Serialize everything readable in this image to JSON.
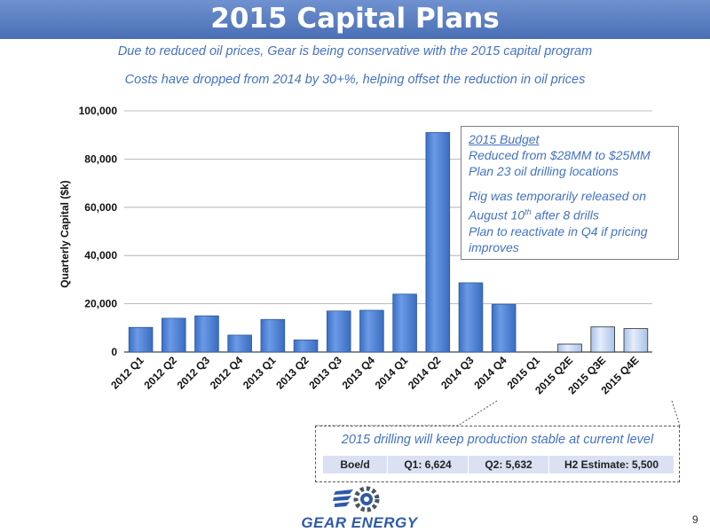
{
  "header": {
    "title": "2015 Capital Plans",
    "subtitle1": "Due to reduced oil prices, Gear is being conservative with the 2015 capital program",
    "subtitle2": "Costs have dropped from 2014 by 30+%, helping offset the reduction in oil prices"
  },
  "chart_data": {
    "type": "bar",
    "title": "",
    "ylabel": "Quarterly Capital ($k)",
    "xlabel": "",
    "ylim": [
      0,
      100000
    ],
    "yticks": [
      0,
      20000,
      40000,
      60000,
      80000,
      100000
    ],
    "ytick_labels": [
      "0",
      "20,000",
      "40,000",
      "60,000",
      "80,000",
      "100,000"
    ],
    "grid": true,
    "categories": [
      "2012 Q1",
      "2012 Q2",
      "2012 Q3",
      "2012 Q4",
      "2013 Q1",
      "2013 Q2",
      "2013 Q3",
      "2013 Q4",
      "2014 Q1",
      "2014 Q2",
      "2014 Q3",
      "2014 Q4",
      "2015 Q1",
      "2015 Q2E",
      "2015 Q3E",
      "2015 Q4E"
    ],
    "values": [
      10200,
      14000,
      15000,
      7000,
      13500,
      5000,
      17000,
      17300,
      24000,
      91000,
      28700,
      19800,
      0,
      3300,
      10400,
      9700
    ],
    "estimate_categories": [
      "2015 Q2E",
      "2015 Q3E",
      "2015 Q4E"
    ],
    "colors": {
      "actual": "#4f86d9",
      "estimate": "#cbdcf4",
      "grid": "#a6a6a6"
    }
  },
  "callout": {
    "heading": "2015 Budget",
    "line1": "Reduced from $28MM to $25MM",
    "line2": "Plan 23 oil drilling locations",
    "line3": "Rig was temporarily released on",
    "line4a": "August 10",
    "line4sup": "th",
    "line4b": " after 8 drills",
    "line5": "Plan to reactivate in Q4 if pricing",
    "line6": "improves"
  },
  "production": {
    "heading": "2015 drilling will keep production stable at current level",
    "cells": [
      "Boe/d",
      "Q1: 6,624",
      "Q2: 5,632",
      "H2 Estimate: 5,500"
    ]
  },
  "footer": {
    "logo_text": "GEAR ENERGY",
    "logo_icon": "gear-wing-icon",
    "page_number": "9"
  }
}
